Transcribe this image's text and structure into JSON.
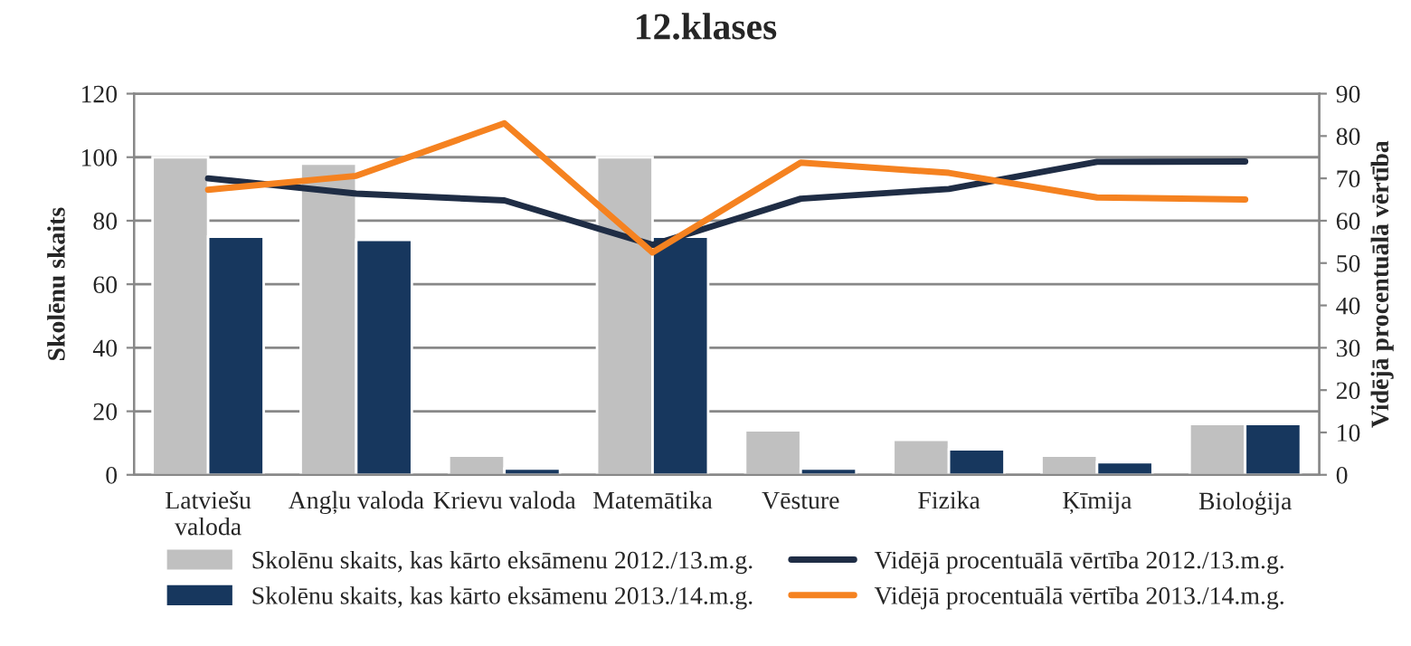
{
  "chart_data": {
    "type": "bar",
    "title": "12.klases",
    "ylabel": "Skolēnu skaits",
    "y2label": "Vidējā procentuālā vērtība",
    "categories": [
      "Latviešu\nvaloda",
      "Angļu valoda",
      "Krievu valoda",
      "Matemātika",
      "Vēsture",
      "Fizika",
      "Ķīmija",
      "Bioloģija"
    ],
    "series": [
      {
        "name": "Skolēnu skaits, kas kārto eksāmenu 2012./13.m.g.",
        "color": "#c0c0c0",
        "values": [
          100,
          98,
          6,
          100,
          14,
          11,
          6,
          16
        ]
      },
      {
        "name": "Skolēnu skaits, kas kārto eksāmenu 2013./14.m.g.",
        "color": "#17375e",
        "values": [
          75,
          74,
          2,
          75,
          2,
          8,
          4,
          16
        ]
      },
      {
        "name": "Vidējā procentuālā vērtība 2012./13.m.g.",
        "type": "line",
        "axis": "y2",
        "color": "#1f2d45",
        "values": [
          70,
          66.4,
          64.8,
          54.3,
          65.2,
          67.5,
          73.9,
          74
        ]
      },
      {
        "name": "Vidējā procentuālā vērtība 2013./14.m.g.",
        "type": "line",
        "axis": "y2",
        "color": "#f58220",
        "values": [
          67.3,
          70.6,
          83,
          52.5,
          73.7,
          71.3,
          65.5,
          65
        ]
      }
    ],
    "ylim": [
      0,
      120
    ],
    "yticks": [
      0,
      20,
      40,
      60,
      80,
      100,
      120
    ],
    "y2lim": [
      0,
      90
    ],
    "y2ticks": [
      0,
      10,
      20,
      30,
      40,
      50,
      60,
      70,
      80,
      90
    ],
    "grid": "y",
    "legend": "bottom",
    "marker": "none",
    "line_style": "solid"
  }
}
